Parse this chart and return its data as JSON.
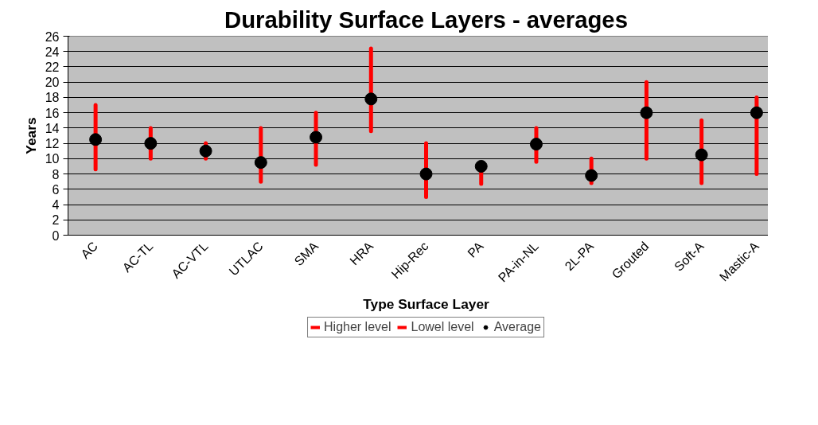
{
  "chart_data": {
    "type": "scatter",
    "title": "Durability Surface Layers - averages",
    "xlabel": "Type Surface Layer",
    "ylabel": "Years",
    "categories": [
      "AC",
      "AC-TL",
      "AC-VTL",
      "UTLAC",
      "SMA",
      "HRA",
      "Hip-Rec",
      "PA",
      "PA-in-NL",
      "2L-PA",
      "Grouted",
      "Soft-A",
      "Mastic-A"
    ],
    "series": [
      {
        "name": "Higher level",
        "marker": "none",
        "color": "#ff0000",
        "values": [
          null,
          null,
          null,
          null,
          null,
          null,
          null,
          null,
          null,
          null,
          null,
          null,
          null
        ]
      },
      {
        "name": "Lowel level",
        "marker": "none",
        "color": "#ff0000",
        "values": [
          null,
          null,
          null,
          null,
          null,
          null,
          null,
          null,
          null,
          null,
          null,
          null,
          null
        ]
      },
      {
        "name": "Average",
        "type": "scatter",
        "marker": "circle",
        "color": "#000000",
        "values": [
          12.5,
          12,
          11,
          9.5,
          12.8,
          17.8,
          8,
          9,
          11.9,
          7.8,
          16,
          10.5,
          16
        ],
        "errors": [
          [
            8.6,
            17
          ],
          [
            10,
            14
          ],
          [
            10,
            12
          ],
          [
            7,
            14
          ],
          [
            9.2,
            16
          ],
          [
            13.6,
            24.4
          ],
          [
            5,
            12
          ],
          [
            6.7,
            9
          ],
          [
            9.6,
            14
          ],
          [
            6.8,
            10
          ],
          [
            10,
            20
          ],
          [
            6.8,
            15
          ],
          [
            8,
            18
          ]
        ]
      }
    ],
    "ylim": [
      0,
      26
    ],
    "yticks": [
      0,
      2,
      4,
      6,
      8,
      10,
      12,
      14,
      16,
      18,
      20,
      22,
      24,
      26
    ],
    "grid": "y",
    "legend": "bottom"
  }
}
